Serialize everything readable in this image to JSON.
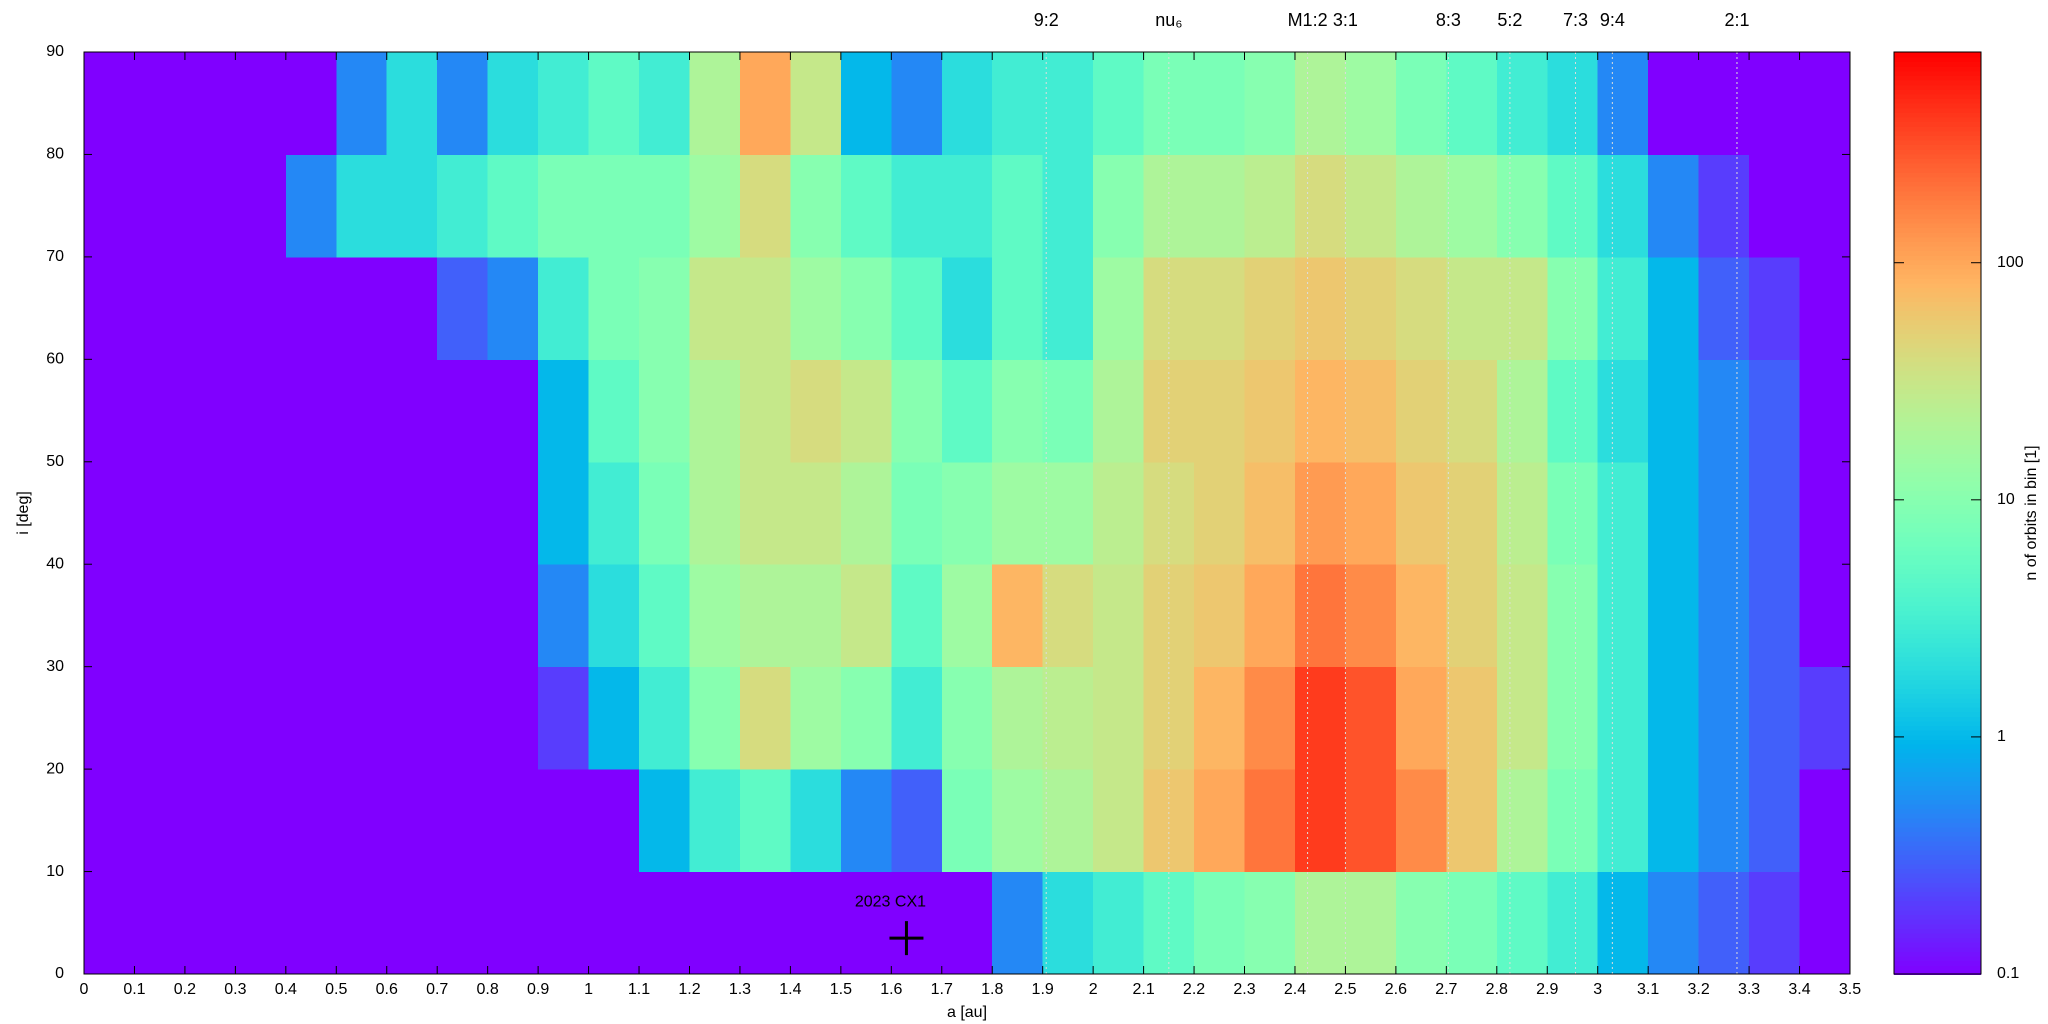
{
  "chart_data": {
    "type": "heatmap",
    "xlabel": "a [au]",
    "ylabel": "i [deg]",
    "colorbar_label": "n of orbits in bin [1]",
    "colormap": "rainbow",
    "zscale": "log",
    "xlim": [
      0,
      3.5
    ],
    "ylim": [
      0,
      90
    ],
    "zlim": [
      0.1,
      774
    ],
    "xticks": [
      0,
      0.1,
      0.2,
      0.3,
      0.4,
      0.5,
      0.6,
      0.7,
      0.8,
      0.9,
      1,
      1.1,
      1.2,
      1.3,
      1.4,
      1.5,
      1.6,
      1.7,
      1.8,
      1.9,
      2,
      2.1,
      2.2,
      2.3,
      2.4,
      2.5,
      2.6,
      2.7,
      2.8,
      2.9,
      3,
      3.1,
      3.2,
      3.3,
      3.4,
      3.5
    ],
    "yticks": [
      0,
      10,
      20,
      30,
      40,
      50,
      60,
      70,
      80,
      90
    ],
    "zticks": [
      0.1,
      1,
      10,
      100
    ],
    "x_edges": [
      0,
      0.1,
      0.2,
      0.3,
      0.4,
      0.5,
      0.6,
      0.7,
      0.8,
      0.9,
      1,
      1.1,
      1.2,
      1.3,
      1.4,
      1.5,
      1.6,
      1.7,
      1.8,
      1.9,
      2,
      2.1,
      2.2,
      2.3,
      2.4,
      2.5,
      2.6,
      2.7,
      2.8,
      2.9,
      3,
      3.1,
      3.2,
      3.3,
      3.4,
      3.5
    ],
    "y_edges": [
      0,
      10,
      20,
      30,
      40,
      50,
      60,
      70,
      80,
      90
    ],
    "z": [
      [
        0.1,
        0.1,
        0.1,
        0.1,
        0.1,
        0.1,
        0.1,
        0.1,
        0.1,
        0.1,
        0.1,
        0.1,
        0.1,
        0.1,
        0.1,
        0.1,
        0.1,
        0.1,
        0.5,
        2,
        3,
        5,
        8,
        10,
        20,
        20,
        10,
        8,
        5,
        3,
        1,
        0.5,
        0.3,
        0.2,
        0.1
      ],
      [
        0.1,
        0.1,
        0.1,
        0.1,
        0.1,
        0.1,
        0.1,
        0.1,
        0.1,
        0.1,
        0.1,
        1,
        3,
        5,
        2,
        0.5,
        0.3,
        8,
        15,
        20,
        30,
        60,
        100,
        200,
        400,
        300,
        150,
        60,
        20,
        8,
        3,
        1,
        0.5,
        0.3,
        0.1
      ],
      [
        0.1,
        0.1,
        0.1,
        0.1,
        0.1,
        0.1,
        0.1,
        0.1,
        0.1,
        0.2,
        1,
        3,
        10,
        40,
        15,
        10,
        3,
        10,
        20,
        25,
        30,
        50,
        80,
        150,
        400,
        300,
        100,
        60,
        30,
        10,
        3,
        1,
        0.5,
        0.3,
        0.2
      ],
      [
        0.1,
        0.1,
        0.1,
        0.1,
        0.1,
        0.1,
        0.1,
        0.1,
        0.1,
        0.5,
        2,
        5,
        15,
        20,
        20,
        30,
        5,
        15,
        80,
        40,
        30,
        50,
        60,
        100,
        200,
        150,
        80,
        50,
        30,
        10,
        3,
        1,
        0.5,
        0.3,
        0.1
      ],
      [
        0.1,
        0.1,
        0.1,
        0.1,
        0.1,
        0.1,
        0.1,
        0.1,
        0.1,
        1,
        3,
        8,
        20,
        30,
        30,
        20,
        8,
        10,
        15,
        15,
        25,
        40,
        50,
        70,
        120,
        100,
        60,
        50,
        25,
        8,
        3,
        1,
        0.5,
        0.3,
        0.1
      ],
      [
        0.1,
        0.1,
        0.1,
        0.1,
        0.1,
        0.1,
        0.1,
        0.1,
        0.1,
        1,
        5,
        10,
        20,
        30,
        40,
        30,
        10,
        5,
        10,
        8,
        20,
        50,
        50,
        60,
        80,
        70,
        50,
        40,
        20,
        5,
        2,
        1,
        0.5,
        0.3,
        0.1
      ],
      [
        0.1,
        0.1,
        0.1,
        0.1,
        0.1,
        0.1,
        0.1,
        0.3,
        0.5,
        3,
        8,
        10,
        30,
        30,
        15,
        10,
        5,
        2,
        5,
        3,
        15,
        40,
        40,
        50,
        60,
        50,
        40,
        30,
        30,
        10,
        3,
        1,
        0.3,
        0.2,
        0.1
      ],
      [
        0.1,
        0.1,
        0.1,
        0.1,
        0.5,
        2,
        2,
        3,
        5,
        8,
        8,
        8,
        15,
        40,
        10,
        5,
        3,
        3,
        5,
        3,
        10,
        20,
        20,
        25,
        40,
        30,
        20,
        15,
        10,
        5,
        2,
        0.5,
        0.2,
        0.1,
        0.1
      ],
      [
        0.1,
        0.1,
        0.1,
        0.1,
        0.1,
        0.5,
        2,
        0.5,
        2,
        3,
        5,
        3,
        20,
        100,
        30,
        1,
        0.5,
        2,
        3,
        3,
        5,
        8,
        8,
        10,
        20,
        15,
        8,
        5,
        3,
        2,
        0.5,
        0.1,
        0.1,
        0.1,
        0.1
      ]
    ],
    "resonances": [
      {
        "name": "9:2",
        "a": 1.907
      },
      {
        "name": "nu₆",
        "a": 2.15
      },
      {
        "name": "M1:2",
        "a": 2.425
      },
      {
        "name": "3:1",
        "a": 2.5
      },
      {
        "name": "8:3",
        "a": 2.704
      },
      {
        "name": "5:2",
        "a": 2.826
      },
      {
        "name": "7:3",
        "a": 2.956
      },
      {
        "name": "9:4",
        "a": 3.029
      },
      {
        "name": "2:1",
        "a": 3.276
      }
    ],
    "marker": {
      "label": "2023 CX1",
      "a": 1.63,
      "i": 3.5
    }
  }
}
